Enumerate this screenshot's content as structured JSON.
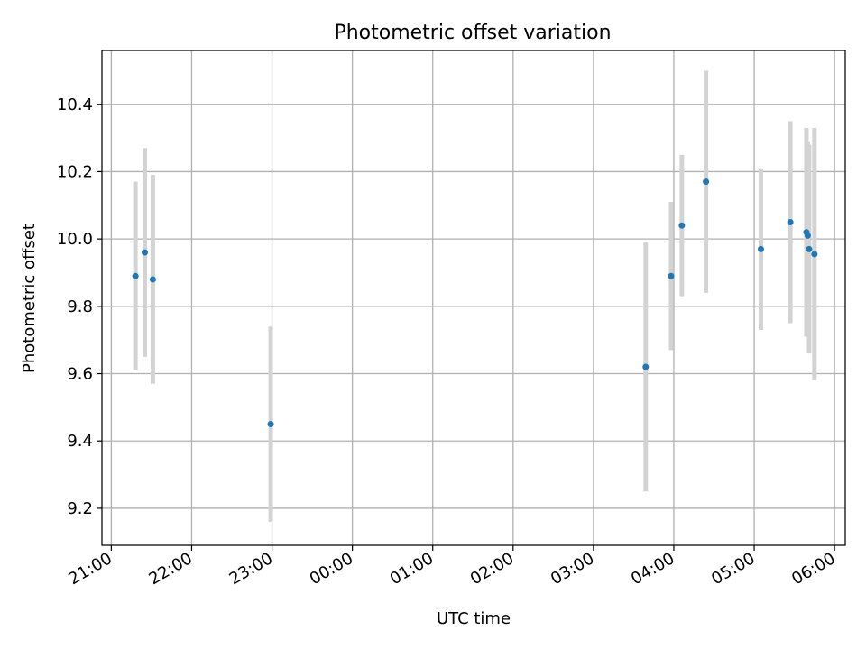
{
  "chart_data": {
    "type": "scatter",
    "title": "Photometric offset variation",
    "xlabel": "UTC time",
    "ylabel": "Photometric offset",
    "x_axis": {
      "type": "time",
      "range": [
        "20:53",
        "06:08"
      ],
      "ticks": [
        "21:00",
        "22:00",
        "23:00",
        "00:00",
        "01:00",
        "02:00",
        "03:00",
        "04:00",
        "05:00",
        "06:00"
      ]
    },
    "y_axis": {
      "range": [
        9.09,
        10.56
      ],
      "ticks": [
        "9.2",
        "9.4",
        "9.6",
        "9.8",
        "10.0",
        "10.2",
        "10.4"
      ]
    },
    "grid": true,
    "colors": {
      "marker": "#1f77b4",
      "errorbar": "#d3d3d3",
      "grid": "#b0b0b0"
    },
    "points": [
      {
        "x": "21:18",
        "y": 9.89,
        "err": 0.28
      },
      {
        "x": "21:25",
        "y": 9.96,
        "err": 0.31
      },
      {
        "x": "21:31",
        "y": 9.88,
        "err": 0.31
      },
      {
        "x": "22:59",
        "y": 9.45,
        "err": 0.29
      },
      {
        "x": "03:39",
        "y": 9.62,
        "err": 0.37
      },
      {
        "x": "03:58",
        "y": 9.89,
        "err": 0.22
      },
      {
        "x": "04:06",
        "y": 10.04,
        "err": 0.21
      },
      {
        "x": "04:24",
        "y": 10.17,
        "err": 0.33
      },
      {
        "x": "05:05",
        "y": 9.97,
        "err": 0.24
      },
      {
        "x": "05:27",
        "y": 10.05,
        "err": 0.3
      },
      {
        "x": "05:39",
        "y": 10.02,
        "err": 0.31
      },
      {
        "x": "05:40",
        "y": 10.01,
        "err": 0.28
      },
      {
        "x": "05:41",
        "y": 9.97,
        "err": 0.31
      },
      {
        "x": "05:45",
        "y": 9.955,
        "err": 0.375
      }
    ]
  }
}
